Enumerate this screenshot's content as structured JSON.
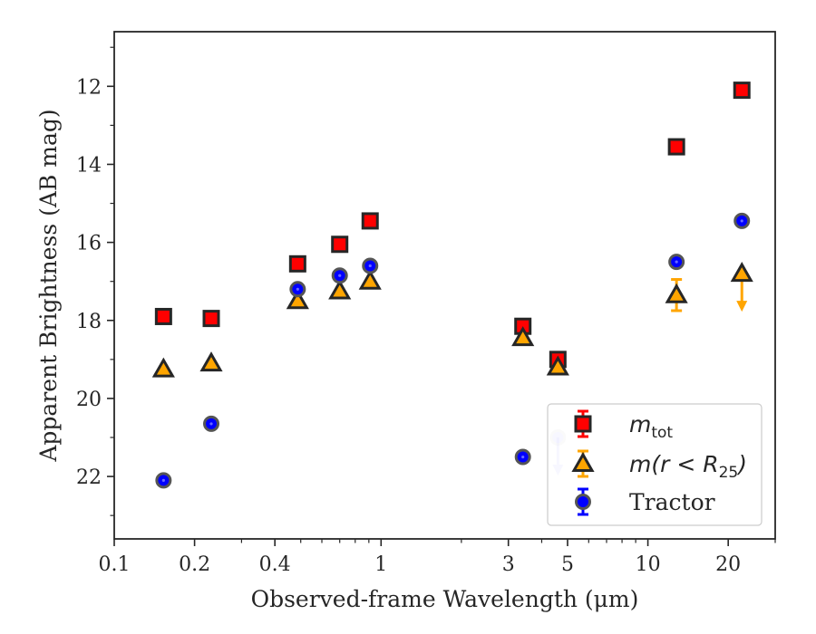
{
  "chart_data": {
    "type": "scatter",
    "xscale": "log",
    "yaxis_inverted": true,
    "xlabel": "Observed-frame Wavelength (μm)",
    "ylabel": "Apparent Brightness (AB mag)",
    "xlim": [
      0.1,
      30
    ],
    "ylim": [
      23.6,
      10.6
    ],
    "x_ticks": [
      0.1,
      0.2,
      0.4,
      1,
      3,
      5,
      10,
      20
    ],
    "x_tick_labels": [
      "0.1",
      "0.2",
      "0.4",
      "1",
      "3",
      "5",
      "10",
      "20"
    ],
    "y_ticks": [
      12,
      14,
      16,
      18,
      20,
      22
    ],
    "y_tick_labels": [
      "12",
      "14",
      "16",
      "18",
      "20",
      "22"
    ],
    "legend_position": "lower-right",
    "series": [
      {
        "name": "m_tot",
        "label_main": "m",
        "label_sub": "tot",
        "marker": "square",
        "color": "#ff0000",
        "error_color": "#ff0000",
        "points": [
          {
            "x": 0.153,
            "y": 17.9
          },
          {
            "x": 0.231,
            "y": 17.95
          },
          {
            "x": 0.487,
            "y": 16.55
          },
          {
            "x": 0.7,
            "y": 16.05
          },
          {
            "x": 0.91,
            "y": 15.45
          },
          {
            "x": 3.4,
            "y": 18.15
          },
          {
            "x": 4.6,
            "y": 19.0
          },
          {
            "x": 12.8,
            "y": 13.55
          },
          {
            "x": 22.5,
            "y": 12.1
          }
        ]
      },
      {
        "name": "m(r < R25)",
        "label_main": "m(r < R",
        "label_sub": "25",
        "label_end": ")",
        "marker": "triangle",
        "color": "#ffa500",
        "error_color": "#ffa500",
        "points": [
          {
            "x": 0.153,
            "y": 19.25
          },
          {
            "x": 0.231,
            "y": 19.1
          },
          {
            "x": 0.487,
            "y": 17.5
          },
          {
            "x": 0.7,
            "y": 17.25
          },
          {
            "x": 0.91,
            "y": 17.0
          },
          {
            "x": 3.4,
            "y": 18.45
          },
          {
            "x": 4.6,
            "y": 19.2
          },
          {
            "x": 12.8,
            "y": 17.35,
            "yerr": 0.4
          },
          {
            "x": 22.5,
            "y": 16.8,
            "upper_limit": true
          }
        ]
      },
      {
        "name": "Tractor",
        "label_main": "Tractor",
        "marker": "circle",
        "color": "#0000ff",
        "error_color": "#0000ff",
        "points": [
          {
            "x": 0.153,
            "y": 22.1
          },
          {
            "x": 0.231,
            "y": 20.65
          },
          {
            "x": 0.487,
            "y": 17.2
          },
          {
            "x": 0.7,
            "y": 16.85
          },
          {
            "x": 0.91,
            "y": 16.6
          },
          {
            "x": 3.4,
            "y": 21.5
          },
          {
            "x": 4.6,
            "y": 21.0,
            "upper_limit": true,
            "faded": true
          },
          {
            "x": 12.8,
            "y": 16.5
          },
          {
            "x": 22.5,
            "y": 15.45
          }
        ]
      }
    ]
  }
}
